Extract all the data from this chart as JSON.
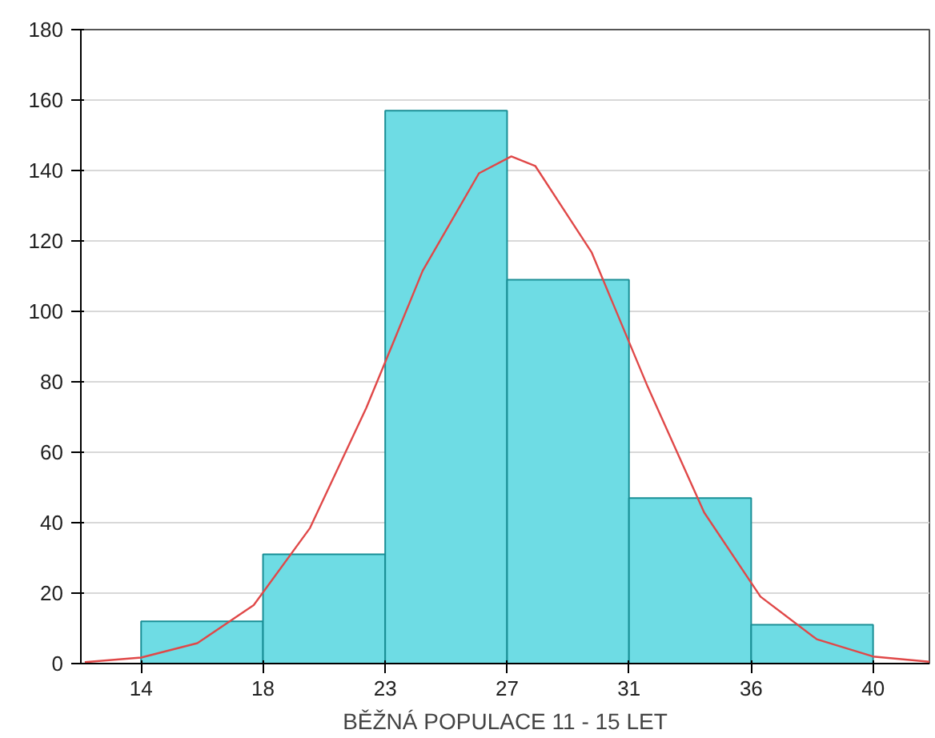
{
  "chart_data": {
    "type": "histogram",
    "xlabel": "BĚŽNÁ POPULACE 11 - 15 LET",
    "series": [
      {
        "bins": [
          14,
          18.33,
          22.67,
          27,
          31.33,
          35.67,
          40
        ],
        "values": [
          12,
          31,
          157,
          109,
          47,
          11
        ],
        "color": "#6edce4"
      },
      {
        "type": "line",
        "color": "#e04848",
        "x": [
          12,
          14,
          16,
          18,
          20,
          22,
          23,
          24,
          26,
          27.15,
          28,
          30,
          32,
          34,
          36,
          38,
          40,
          42
        ],
        "values": [
          0.4,
          1.7,
          5.8,
          16.6,
          38.5,
          72.6,
          92,
          111.5,
          139.2,
          144,
          141.3,
          116.8,
          78.5,
          42.9,
          19,
          6.9,
          2,
          0.5
        ]
      }
    ],
    "xlim": [
      11.86,
      42
    ],
    "xticks": [
      14,
      {
        "value": 18.33,
        "label": "18"
      },
      {
        "value": 22.67,
        "label": "23"
      },
      27,
      {
        "value": 31.33,
        "label": "31"
      },
      {
        "value": 35.67,
        "label": "36"
      },
      40
    ],
    "ylim": [
      0,
      180
    ],
    "yticks": [
      0,
      20,
      40,
      60,
      80,
      100,
      120,
      140,
      160,
      180
    ],
    "grid": "y"
  }
}
